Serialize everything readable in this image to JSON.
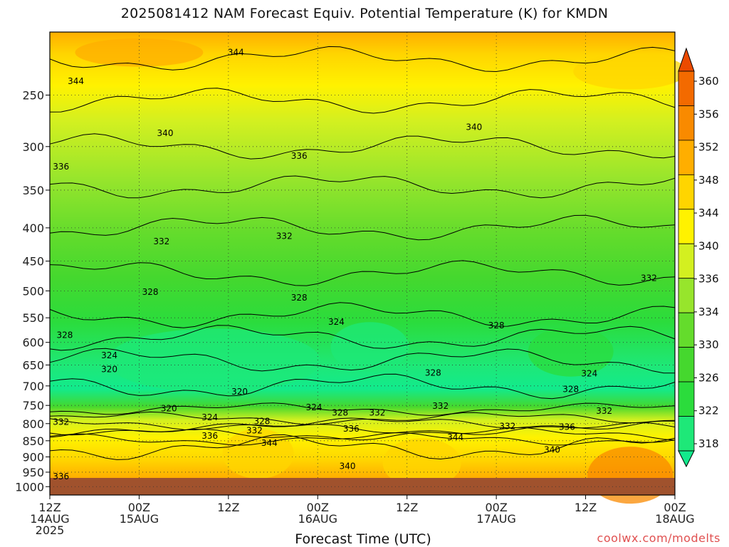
{
  "title": "2025081412 NAM Forecast Equiv. Potential Temperature (K) for KMDN",
  "credit": "coolwx.com/modelts",
  "chart_data": {
    "type": "heatmap",
    "title": "2025081412 NAM Forecast Equiv. Potential Temperature (K) for KMDN",
    "xlabel": "Forecast Time (UTC)",
    "ylabel": "",
    "x_ticks": [
      {
        "hour": 0,
        "label": [
          "12Z",
          "14AUG",
          "2025"
        ]
      },
      {
        "hour": 12,
        "label": [
          "00Z",
          "15AUG"
        ]
      },
      {
        "hour": 24,
        "label": [
          "12Z"
        ]
      },
      {
        "hour": 36,
        "label": [
          "00Z",
          "16AUG"
        ]
      },
      {
        "hour": 48,
        "label": [
          "12Z"
        ]
      },
      {
        "hour": 60,
        "label": [
          "00Z",
          "17AUG"
        ]
      },
      {
        "hour": 72,
        "label": [
          "12Z"
        ]
      },
      {
        "hour": 84,
        "label": [
          "00Z",
          "18AUG"
        ]
      }
    ],
    "xlim": [
      "2025-08-14 12Z",
      "2025-08-18 00Z"
    ],
    "y_ticks": [
      250,
      300,
      350,
      400,
      450,
      500,
      550,
      600,
      650,
      700,
      750,
      800,
      850,
      900,
      950,
      1000
    ],
    "ylim": [
      200,
      1030
    ],
    "y_scale": "log (pressure, hPa), inverted",
    "grid": true,
    "colorbar": {
      "ticks": [
        318,
        322,
        326,
        330,
        334,
        336,
        340,
        344,
        348,
        352,
        356,
        360
      ],
      "colors": [
        "#12ea8c",
        "#1ee878",
        "#2bdc3c",
        "#45d82e",
        "#64dc2c",
        "#97e52c",
        "#d3f020",
        "#fff200",
        "#ffd500",
        "#ffae00",
        "#f98a00",
        "#f36a00",
        "#eb4a00"
      ]
    },
    "contour_labels": [
      {
        "value": 344,
        "hour": 25,
        "hPa": 215
      },
      {
        "value": 344,
        "hour": 3.5,
        "hPa": 238
      },
      {
        "value": 340,
        "hour": 15.5,
        "hPa": 286
      },
      {
        "value": 340,
        "hour": 57,
        "hPa": 280
      },
      {
        "value": 336,
        "hour": 1.5,
        "hPa": 322
      },
      {
        "value": 336,
        "hour": 33.5,
        "hPa": 310
      },
      {
        "value": 332,
        "hour": 15,
        "hPa": 420
      },
      {
        "value": 332,
        "hour": 31.5,
        "hPa": 412
      },
      {
        "value": 332,
        "hour": 80.5,
        "hPa": 478
      },
      {
        "value": 328,
        "hour": 13.5,
        "hPa": 502
      },
      {
        "value": 328,
        "hour": 33.5,
        "hPa": 512
      },
      {
        "value": 328,
        "hour": 2,
        "hPa": 585
      },
      {
        "value": 328,
        "hour": 60,
        "hPa": 565
      },
      {
        "value": 324,
        "hour": 8,
        "hPa": 628
      },
      {
        "value": 324,
        "hour": 38.5,
        "hPa": 558
      },
      {
        "value": 320,
        "hour": 8,
        "hPa": 660
      },
      {
        "value": 320,
        "hour": 25.5,
        "hPa": 715
      },
      {
        "value": 320,
        "hour": 16,
        "hPa": 758
      },
      {
        "value": 324,
        "hour": 21.5,
        "hPa": 782
      },
      {
        "value": 328,
        "hour": 28.5,
        "hPa": 793
      },
      {
        "value": 324,
        "hour": 35.5,
        "hPa": 755
      },
      {
        "value": 328,
        "hour": 39,
        "hPa": 770
      },
      {
        "value": 332,
        "hour": 44,
        "hPa": 770
      },
      {
        "value": 332,
        "hour": 52.5,
        "hPa": 752
      },
      {
        "value": 328,
        "hour": 51.5,
        "hPa": 668
      },
      {
        "value": 332,
        "hour": 1.5,
        "hPa": 795
      },
      {
        "value": 336,
        "hour": 21.5,
        "hPa": 835
      },
      {
        "value": 332,
        "hour": 27.5,
        "hPa": 820
      },
      {
        "value": 336,
        "hour": 40.5,
        "hPa": 815
      },
      {
        "value": 344,
        "hour": 29.5,
        "hPa": 857
      },
      {
        "value": 344,
        "hour": 54.5,
        "hPa": 840
      },
      {
        "value": 332,
        "hour": 61.5,
        "hPa": 808
      },
      {
        "value": 336,
        "hour": 69.5,
        "hPa": 810
      },
      {
        "value": 340,
        "hour": 67.5,
        "hPa": 878
      },
      {
        "value": 340,
        "hour": 40,
        "hPa": 930
      },
      {
        "value": 336,
        "hour": 1.5,
        "hPa": 965
      },
      {
        "value": 328,
        "hour": 70,
        "hPa": 708
      },
      {
        "value": 324,
        "hour": 72.5,
        "hPa": 670
      },
      {
        "value": 332,
        "hour": 74.5,
        "hPa": 765
      }
    ]
  }
}
